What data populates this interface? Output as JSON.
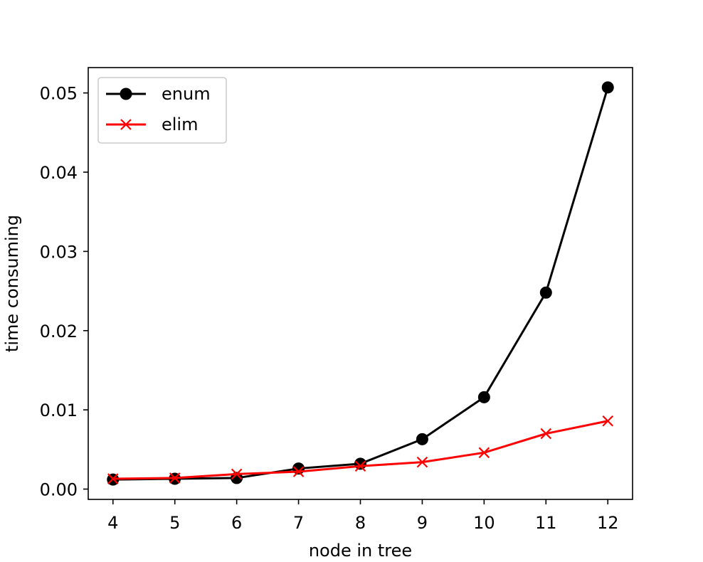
{
  "chart_data": {
    "type": "line",
    "title": "",
    "xlabel": "node in tree",
    "ylabel": "time consuming",
    "x": [
      4,
      5,
      6,
      7,
      8,
      9,
      10,
      11,
      12
    ],
    "xlim": [
      3.6,
      12.4
    ],
    "ylim": [
      -0.0013,
      0.0532
    ],
    "xticks": [
      4,
      5,
      6,
      7,
      8,
      9,
      10,
      11,
      12
    ],
    "yticks": [
      0.0,
      0.01,
      0.02,
      0.03,
      0.04,
      0.05
    ],
    "ytick_labels": [
      "0.00",
      "0.01",
      "0.02",
      "0.03",
      "0.04",
      "0.05"
    ],
    "grid": false,
    "legend_position": "top-left",
    "series": [
      {
        "name": "enum",
        "color": "#000000",
        "marker": "circle",
        "values": [
          0.0012,
          0.0013,
          0.0014,
          0.0026,
          0.0032,
          0.0063,
          0.0116,
          0.0248,
          0.0507
        ]
      },
      {
        "name": "elim",
        "color": "#ff0000",
        "marker": "x",
        "values": [
          0.0013,
          0.0014,
          0.0019,
          0.0022,
          0.0029,
          0.0034,
          0.0046,
          0.007,
          0.0086
        ]
      }
    ]
  }
}
